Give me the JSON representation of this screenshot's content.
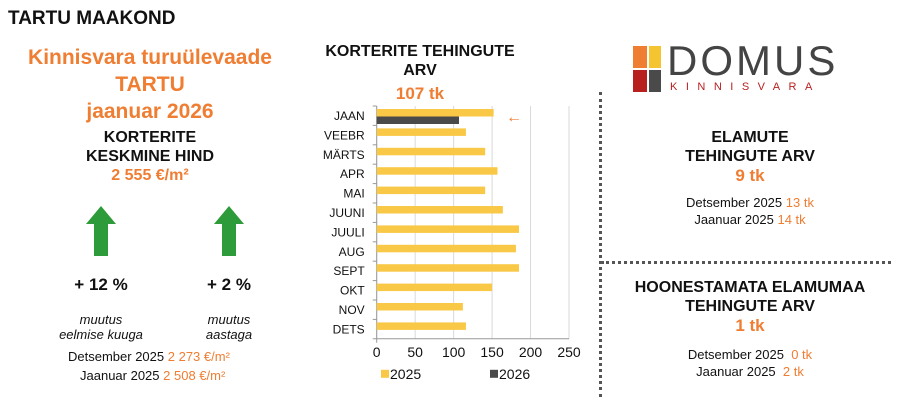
{
  "region": "TARTU MAAKOND",
  "left": {
    "title1": "Kinnisvara turuülevaade",
    "title2": "TARTU",
    "title3": "jaanuar 2026",
    "subtitle1": "KORTERITE",
    "subtitle2": "KESKMINE HIND",
    "price": "2 555 €/m²",
    "changes": [
      {
        "value": "+ 12 %",
        "label1": "muutus",
        "label2": "eelmise kuuga",
        "direction": "up"
      },
      {
        "value": "+ 2 %",
        "label1": "muutus",
        "label2": "aastaga",
        "direction": "up"
      }
    ],
    "history": [
      {
        "label": "Detsember 2025",
        "value": "2 273 €/m²"
      },
      {
        "label": "Jaanuar 2025",
        "value": "2 508 €/m²"
      }
    ]
  },
  "logo": {
    "name": "DOMUS",
    "sub": "KINNISVARA"
  },
  "right": {
    "houses": {
      "title1": "ELAMUTE",
      "title2": "TEHINGUTE ARV",
      "value": "9 tk",
      "history": [
        {
          "label": "Detsember 2025",
          "value": "13 tk"
        },
        {
          "label": "Jaanuar 2025",
          "value": "14 tk"
        }
      ]
    },
    "land": {
      "title1": "HOONESTAMATA ELAMUMAA",
      "title2": "TEHINGUTE ARV",
      "value": "1 tk",
      "history": [
        {
          "label": "Detsember 2025",
          "value": "0 tk"
        },
        {
          "label": "Jaanuar 2025",
          "value": "2 tk"
        }
      ]
    }
  },
  "colors": {
    "accent": "#ef7d32",
    "s2025": "#f9c846",
    "s2026": "#4a4a4a",
    "up": "#2e9b3a"
  },
  "chart_data": {
    "type": "bar",
    "orientation": "horizontal",
    "title": "KORTERITE TEHINGUTE ARV",
    "subtitle": "107 tk",
    "categories": [
      "JAAN",
      "VEEBR",
      "MÄRTS",
      "APR",
      "MAI",
      "JUUNI",
      "JUULI",
      "AUG",
      "SEPT",
      "OKT",
      "NOV",
      "DETS"
    ],
    "series": [
      {
        "name": "2025",
        "values": [
          152,
          116,
          141,
          157,
          141,
          164,
          185,
          181,
          185,
          150,
          112,
          116
        ]
      },
      {
        "name": "2026",
        "values": [
          107,
          null,
          null,
          null,
          null,
          null,
          null,
          null,
          null,
          null,
          null,
          null
        ]
      }
    ],
    "xlim": [
      0,
      250
    ],
    "xticks": [
      0,
      50,
      100,
      150,
      200,
      250
    ],
    "grid": true,
    "legend": "bottom",
    "annotation": "←"
  }
}
